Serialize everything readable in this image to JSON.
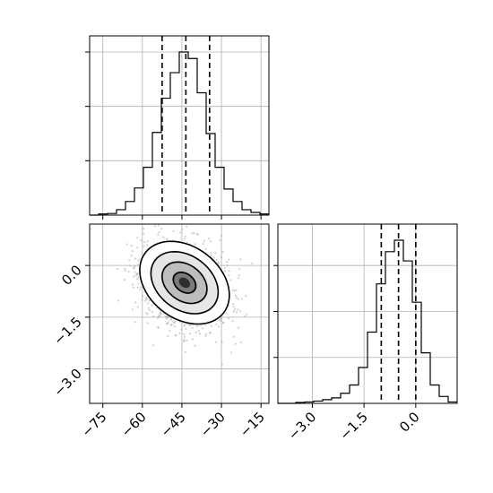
{
  "chart_data": [
    {
      "type": "histogram",
      "panel": "x-marginal",
      "xlim": [
        -80,
        -12
      ],
      "bins": [
        -80,
        -76.6,
        -73.2,
        -69.8,
        -66.4,
        -63,
        -59.6,
        -56.2,
        -52.8,
        -49.4,
        -46,
        -42.6,
        -39.2,
        -35.8,
        -32.4,
        -29,
        -25.6,
        -22.2,
        -18.8,
        -15.4,
        -12
      ],
      "counts": [
        0,
        2,
        3,
        10,
        25,
        50,
        88,
        152,
        215,
        262,
        300,
        288,
        225,
        150,
        88,
        48,
        25,
        10,
        5,
        2
      ],
      "quantiles": [
        -52.5,
        -43.5,
        -34.5
      ],
      "grid": true
    },
    {
      "type": "histogram",
      "panel": "y-marginal",
      "xlim": [
        -4.0,
        1.2
      ],
      "bins": [
        -4.0,
        -3.74,
        -3.48,
        -3.22,
        -2.96,
        -2.7,
        -2.44,
        -2.18,
        -1.92,
        -1.66,
        -1.4,
        -1.14,
        -0.88,
        -0.62,
        -0.36,
        -0.1,
        0.16,
        0.42,
        0.68,
        0.94,
        1.2
      ],
      "counts": [
        0,
        0,
        2,
        3,
        5,
        8,
        12,
        22,
        40,
        78,
        155,
        260,
        330,
        355,
        310,
        220,
        110,
        40,
        15,
        3
      ],
      "quantiles": [
        -1.0,
        -0.5,
        0.0
      ],
      "ticks": [
        -3.0,
        -1.5,
        0.0
      ],
      "tick_labels": [
        "−3.0",
        "−1.5",
        "0.0"
      ],
      "grid": true
    },
    {
      "type": "scatter-contour",
      "panel": "joint",
      "xlim": [
        -80,
        -12
      ],
      "ylim": [
        -4.0,
        1.2
      ],
      "center": [
        -44,
        -0.5
      ],
      "spread": [
        8.5,
        0.6
      ],
      "correlation": -0.3,
      "x_ticks": [
        -75,
        -60,
        -45,
        -30,
        -15
      ],
      "x_tick_labels": [
        "−75",
        "−60",
        "−45",
        "−30",
        "−15"
      ],
      "y_ticks": [
        -3.0,
        -1.5,
        0.0
      ],
      "y_tick_labels": [
        "−3.0",
        "−1.5",
        "0.0"
      ],
      "contour_levels": [
        0.5,
        1.0,
        1.5,
        2.0
      ],
      "grid": true
    }
  ]
}
